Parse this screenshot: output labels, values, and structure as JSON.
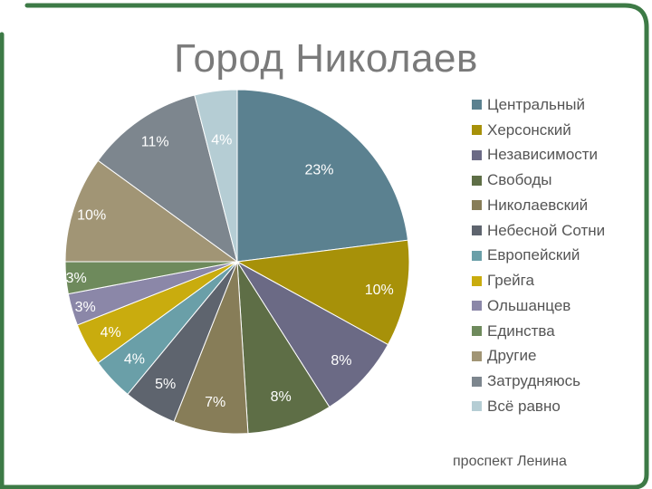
{
  "title": "Город Николаев",
  "footer_text": "проспект Ленина",
  "chart_data": {
    "type": "pie",
    "title": "Город Николаев",
    "legend_position": "right",
    "series": [
      {
        "name": "",
        "slices": [
          {
            "label": "Центральный",
            "value": 23,
            "display": "23%",
            "color": "#5b8190"
          },
          {
            "label": "Херсонский",
            "value": 10,
            "display": "10%",
            "color": "#a79109"
          },
          {
            "label": "Независимости",
            "value": 8,
            "display": "8%",
            "color": "#6b6a85"
          },
          {
            "label": "Свободы",
            "value": 8,
            "display": "8%",
            "color": "#5e6e46"
          },
          {
            "label": "Николаевский",
            "value": 7,
            "display": "7%",
            "color": "#877d58"
          },
          {
            "label": "Небесной Сотни",
            "value": 5,
            "display": "5%",
            "color": "#5e646e"
          },
          {
            "label": "Европейский",
            "value": 4,
            "display": "4%",
            "color": "#6a9fa8"
          },
          {
            "label": "Грейга",
            "value": 4,
            "display": "4%",
            "color": "#c9ac0e"
          },
          {
            "label": "Ольшанцев",
            "value": 3,
            "display": "3%",
            "color": "#8b87a8"
          },
          {
            "label": "Единства",
            "value": 3,
            "display": "3%",
            "color": "#6e8a5c"
          },
          {
            "label": "Другие",
            "value": 10,
            "display": "10%",
            "color": "#a19575"
          },
          {
            "label": "Затрудняюсь",
            "value": 11,
            "display": "11%",
            "color": "#7d868e"
          },
          {
            "label": "Всё равно",
            "value": 4,
            "display": "4%",
            "color": "#b5cdd4"
          }
        ]
      }
    ]
  },
  "colors": {
    "frame": "#3d7a46",
    "title_text": "#7a7a7a",
    "legend_text": "#555555"
  }
}
